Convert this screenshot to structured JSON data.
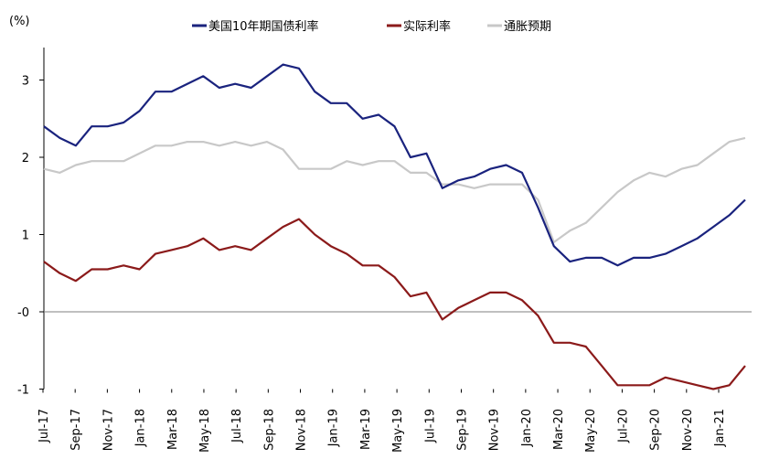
{
  "chart_data": {
    "type": "line",
    "y_unit": "(%)",
    "ylim": [
      -1,
      3.5
    ],
    "y_ticks": [
      {
        "value": 3,
        "label": "3"
      },
      {
        "value": 2,
        "label": "2"
      },
      {
        "value": 1,
        "label": "1"
      },
      {
        "value": 0,
        "label": "-0"
      },
      {
        "value": -1,
        "label": "-1"
      }
    ],
    "x_tick_labels": [
      "Jul-17",
      "Sep-17",
      "Nov-17",
      "Jan-18",
      "Mar-18",
      "May-18",
      "Jul-18",
      "Sep-18",
      "Nov-18",
      "Jan-19",
      "Mar-19",
      "May-19",
      "Jul-19",
      "Sep-19",
      "Nov-19",
      "Jan-20",
      "Mar-20",
      "May-20",
      "Jul-20",
      "Sep-20",
      "Nov-20",
      "Jan-21"
    ],
    "x": [
      "2017-07",
      "2017-08",
      "2017-09",
      "2017-10",
      "2017-11",
      "2017-12",
      "2018-01",
      "2018-02",
      "2018-03",
      "2018-04",
      "2018-05",
      "2018-06",
      "2018-07",
      "2018-08",
      "2018-09",
      "2018-10",
      "2018-11",
      "2018-12",
      "2019-01",
      "2019-02",
      "2019-03",
      "2019-04",
      "2019-05",
      "2019-06",
      "2019-07",
      "2019-08",
      "2019-09",
      "2019-10",
      "2019-11",
      "2019-12",
      "2020-01",
      "2020-02",
      "2020-03",
      "2020-04",
      "2020-05",
      "2020-06",
      "2020-07",
      "2020-08",
      "2020-09",
      "2020-10",
      "2020-11",
      "2020-12",
      "2021-01",
      "2021-02",
      "2021-03"
    ],
    "series": [
      {
        "name": "美国10年期国债利率",
        "color": "#1a237e",
        "values": [
          2.4,
          2.25,
          2.15,
          2.4,
          2.4,
          2.45,
          2.6,
          2.85,
          2.85,
          2.95,
          3.05,
          2.9,
          2.95,
          2.9,
          3.05,
          3.2,
          3.15,
          2.85,
          2.7,
          2.7,
          2.5,
          2.55,
          2.4,
          2.0,
          2.05,
          1.6,
          1.7,
          1.75,
          1.85,
          1.9,
          1.8,
          1.35,
          0.85,
          0.65,
          0.7,
          0.7,
          0.6,
          0.7,
          0.7,
          0.75,
          0.85,
          0.95,
          1.1,
          1.25,
          1.45
        ]
      },
      {
        "name": "实际利率",
        "color": "#8b1a1a",
        "values": [
          0.65,
          0.5,
          0.4,
          0.55,
          0.55,
          0.6,
          0.55,
          0.75,
          0.8,
          0.85,
          0.95,
          0.8,
          0.85,
          0.8,
          0.95,
          1.1,
          1.2,
          1.0,
          0.85,
          0.75,
          0.6,
          0.6,
          0.45,
          0.2,
          0.25,
          -0.1,
          0.05,
          0.15,
          0.25,
          0.25,
          0.15,
          -0.05,
          -0.4,
          -0.4,
          -0.45,
          -0.7,
          -0.95,
          -0.95,
          -0.95,
          -0.85,
          -0.9,
          -0.95,
          -1.0,
          -0.95,
          -0.7
        ]
      },
      {
        "name": "通胀预期",
        "color": "#c8c8c8",
        "values": [
          1.85,
          1.8,
          1.9,
          1.95,
          1.95,
          1.95,
          2.05,
          2.15,
          2.15,
          2.2,
          2.2,
          2.15,
          2.2,
          2.15,
          2.2,
          2.1,
          1.85,
          1.85,
          1.85,
          1.95,
          1.9,
          1.95,
          1.95,
          1.8,
          1.8,
          1.65,
          1.65,
          1.6,
          1.65,
          1.65,
          1.65,
          1.45,
          0.9,
          1.05,
          1.15,
          1.35,
          1.55,
          1.7,
          1.8,
          1.75,
          1.85,
          1.9,
          2.05,
          2.2,
          2.25
        ]
      }
    ]
  }
}
